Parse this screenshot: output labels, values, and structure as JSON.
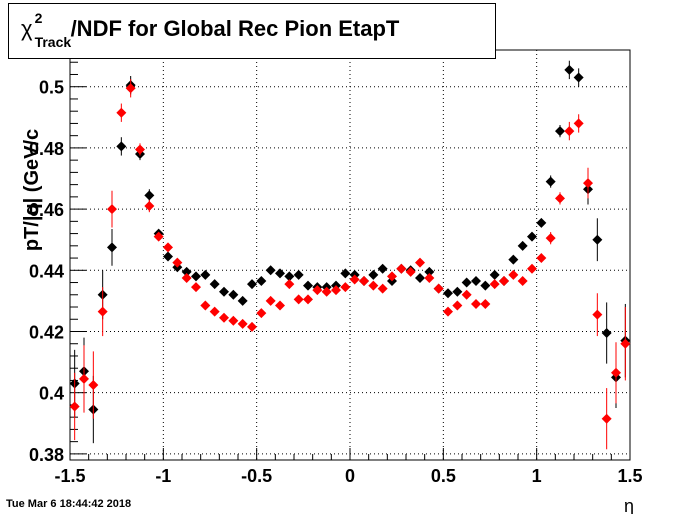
{
  "chart_data": {
    "type": "scatter",
    "title": {
      "chi": "χ",
      "chi_sup": "2",
      "chi_sub": "Track",
      "rest": "/NDF for Global Rec Pion EtapT"
    },
    "xlabel": "η",
    "ylabel": "pT/|q| (GeV/c",
    "xlim": [
      -1.5,
      1.5
    ],
    "ylim": [
      0.378,
      0.512
    ],
    "x_ticks": [
      "-1.5",
      "-1",
      "-0.5",
      "0",
      "0.5",
      "1",
      "1.5"
    ],
    "x_tick_values": [
      -1.5,
      -1,
      -0.5,
      0,
      0.5,
      1,
      1.5
    ],
    "y_ticks": [
      "0.38",
      "0.4",
      "0.42",
      "0.44",
      "0.46",
      "0.48",
      "0.5"
    ],
    "y_tick_values": [
      0.38,
      0.4,
      0.42,
      0.44,
      0.46,
      0.48,
      0.5
    ],
    "grid": true,
    "series": [
      {
        "color": "#000000",
        "x": [
          -1.475,
          -1.425,
          -1.375,
          -1.325,
          -1.275,
          -1.225,
          -1.175,
          -1.125,
          -1.075,
          -1.025,
          -0.975,
          -0.925,
          -0.875,
          -0.825,
          -0.775,
          -0.725,
          -0.675,
          -0.625,
          -0.575,
          -0.525,
          -0.475,
          -0.425,
          -0.375,
          -0.325,
          -0.275,
          -0.225,
          -0.175,
          -0.125,
          -0.075,
          -0.025,
          0.025,
          0.075,
          0.125,
          0.175,
          0.225,
          0.275,
          0.325,
          0.375,
          0.425,
          0.475,
          0.525,
          0.575,
          0.625,
          0.675,
          0.725,
          0.775,
          0.825,
          0.875,
          0.925,
          0.975,
          1.025,
          1.075,
          1.125,
          1.175,
          1.225,
          1.275,
          1.325,
          1.375,
          1.425,
          1.475
        ],
        "y": [
          0.403,
          0.407,
          0.3945,
          0.432,
          0.4475,
          0.4805,
          0.5005,
          0.478,
          0.4645,
          0.452,
          0.4445,
          0.441,
          0.4395,
          0.438,
          0.4385,
          0.4355,
          0.433,
          0.432,
          0.43,
          0.4355,
          0.4365,
          0.44,
          0.439,
          0.438,
          0.4385,
          0.435,
          0.4345,
          0.4345,
          0.435,
          0.439,
          0.4385,
          0.4365,
          0.4385,
          0.4405,
          0.4365,
          0.4405,
          0.44,
          0.4375,
          0.4395,
          0.434,
          0.4325,
          0.433,
          0.436,
          0.4365,
          0.435,
          0.4385,
          0.4365,
          0.4435,
          0.448,
          0.451,
          0.4555,
          0.469,
          0.4855,
          0.5055,
          0.503,
          0.4665,
          0.45,
          0.4195,
          0.405,
          0.417
        ],
        "yerr": [
          0.011,
          0.011,
          0.011,
          0.008,
          0.006,
          0.003,
          0.003,
          0.002,
          0.002,
          0.001,
          0.001,
          0.001,
          0.001,
          0.001,
          0.001,
          0.001,
          0.001,
          0.001,
          0.001,
          0.001,
          0.001,
          0.001,
          0.001,
          0.001,
          0.001,
          0.001,
          0.001,
          0.001,
          0.001,
          0.001,
          0.001,
          0.001,
          0.001,
          0.001,
          0.001,
          0.001,
          0.001,
          0.001,
          0.001,
          0.001,
          0.001,
          0.001,
          0.001,
          0.001,
          0.001,
          0.001,
          0.001,
          0.001,
          0.001,
          0.001,
          0.001,
          0.002,
          0.002,
          0.003,
          0.003,
          0.005,
          0.007,
          0.01,
          0.01,
          0.012
        ]
      },
      {
        "color": "#ff0000",
        "x": [
          -1.475,
          -1.425,
          -1.375,
          -1.325,
          -1.275,
          -1.225,
          -1.175,
          -1.125,
          -1.075,
          -1.025,
          -0.975,
          -0.925,
          -0.875,
          -0.825,
          -0.775,
          -0.725,
          -0.675,
          -0.625,
          -0.575,
          -0.525,
          -0.475,
          -0.425,
          -0.375,
          -0.325,
          -0.275,
          -0.225,
          -0.175,
          -0.125,
          -0.075,
          -0.025,
          0.025,
          0.075,
          0.125,
          0.175,
          0.225,
          0.275,
          0.325,
          0.375,
          0.425,
          0.475,
          0.525,
          0.575,
          0.625,
          0.675,
          0.725,
          0.775,
          0.825,
          0.875,
          0.925,
          0.975,
          1.025,
          1.075,
          1.125,
          1.175,
          1.225,
          1.275,
          1.325,
          1.375,
          1.425,
          1.475
        ],
        "y": [
          0.3955,
          0.4045,
          0.4025,
          0.4265,
          0.46,
          0.4915,
          0.4995,
          0.4795,
          0.461,
          0.451,
          0.4475,
          0.4425,
          0.4375,
          0.4345,
          0.4285,
          0.4265,
          0.4245,
          0.4235,
          0.4225,
          0.4215,
          0.426,
          0.43,
          0.4285,
          0.4355,
          0.4305,
          0.4305,
          0.4335,
          0.433,
          0.4335,
          0.4345,
          0.437,
          0.4365,
          0.435,
          0.434,
          0.438,
          0.4405,
          0.4395,
          0.4425,
          0.4375,
          0.434,
          0.4265,
          0.4285,
          0.432,
          0.429,
          0.429,
          0.4355,
          0.4365,
          0.4385,
          0.4365,
          0.4405,
          0.444,
          0.4505,
          0.4635,
          0.4855,
          0.488,
          0.4685,
          0.4255,
          0.3915,
          0.4065,
          0.416
        ],
        "yerr": [
          0.011,
          0.011,
          0.011,
          0.008,
          0.006,
          0.003,
          0.003,
          0.002,
          0.002,
          0.001,
          0.001,
          0.001,
          0.001,
          0.001,
          0.001,
          0.001,
          0.001,
          0.001,
          0.001,
          0.001,
          0.001,
          0.001,
          0.001,
          0.001,
          0.001,
          0.001,
          0.001,
          0.001,
          0.001,
          0.001,
          0.001,
          0.001,
          0.001,
          0.001,
          0.001,
          0.001,
          0.001,
          0.001,
          0.001,
          0.001,
          0.001,
          0.001,
          0.001,
          0.001,
          0.001,
          0.001,
          0.001,
          0.001,
          0.001,
          0.001,
          0.001,
          0.002,
          0.002,
          0.003,
          0.003,
          0.005,
          0.007,
          0.01,
          0.01,
          0.012
        ]
      }
    ]
  },
  "timestamp": "Tue Mar  6 18:44:42 2018"
}
